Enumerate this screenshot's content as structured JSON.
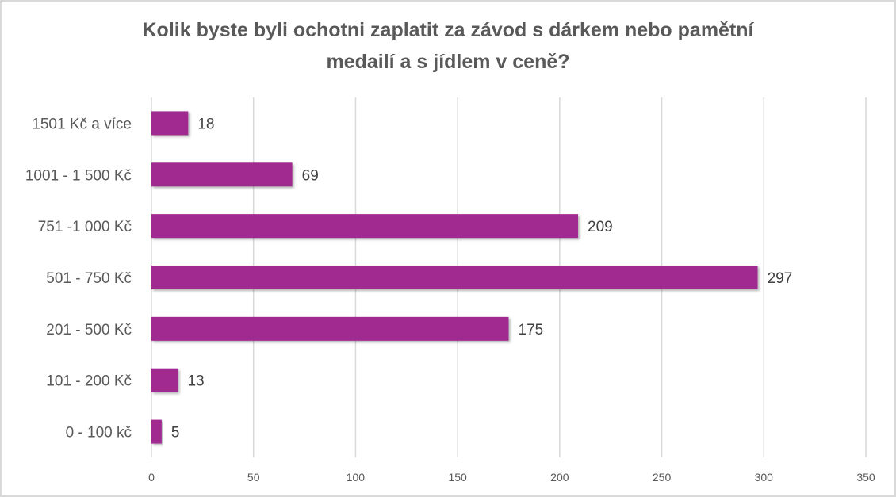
{
  "chart_data": {
    "type": "bar",
    "orientation": "horizontal",
    "title_lines": [
      "Kolik byste byli ochotni zaplatit za závod s dárkem nebo pamětní",
      "medailí a s jídlem v ceně?"
    ],
    "categories": [
      "1501 Kč a více",
      "1001 - 1 500 Kč",
      "751 -1 000 Kč",
      "501 - 750 Kč",
      "201 - 500 Kč",
      "101 - 200 Kč",
      "0 - 100 kč"
    ],
    "values": [
      18,
      69,
      209,
      297,
      175,
      13,
      5
    ],
    "xlim": [
      0,
      350
    ],
    "xticks": [
      "0",
      "50",
      "100",
      "150",
      "200",
      "250",
      "300",
      "350"
    ],
    "grid": true,
    "legend": "none",
    "bar_color": "#A0298F"
  }
}
